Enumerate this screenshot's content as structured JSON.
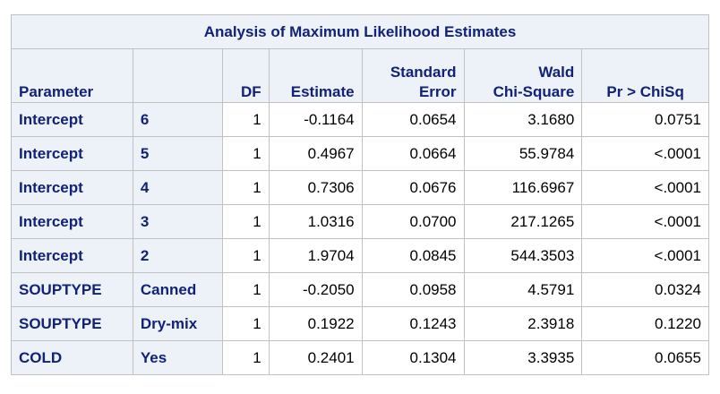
{
  "table": {
    "title": "Analysis of Maximum Likelihood Estimates",
    "headers": {
      "parameter": "Parameter",
      "level": "",
      "df": "DF",
      "estimate": "Estimate",
      "stderr_line1": "Standard",
      "stderr_line2": "Error",
      "wald_line1": "Wald",
      "wald_line2": "Chi-Square",
      "pvalue": "Pr > ChiSq"
    },
    "rows": [
      {
        "parameter": "Intercept",
        "level": "6",
        "df": "1",
        "estimate": "-0.1164",
        "stderr": "0.0654",
        "wald": "3.1680",
        "pvalue": "0.0751"
      },
      {
        "parameter": "Intercept",
        "level": "5",
        "df": "1",
        "estimate": "0.4967",
        "stderr": "0.0664",
        "wald": "55.9784",
        "pvalue": "<.0001"
      },
      {
        "parameter": "Intercept",
        "level": "4",
        "df": "1",
        "estimate": "0.7306",
        "stderr": "0.0676",
        "wald": "116.6967",
        "pvalue": "<.0001"
      },
      {
        "parameter": "Intercept",
        "level": "3",
        "df": "1",
        "estimate": "1.0316",
        "stderr": "0.0700",
        "wald": "217.1265",
        "pvalue": "<.0001"
      },
      {
        "parameter": "Intercept",
        "level": "2",
        "df": "1",
        "estimate": "1.9704",
        "stderr": "0.0845",
        "wald": "544.3503",
        "pvalue": "<.0001"
      },
      {
        "parameter": "SOUPTYPE",
        "level": "Canned",
        "df": "1",
        "estimate": "-0.2050",
        "stderr": "0.0958",
        "wald": "4.5791",
        "pvalue": "0.0324"
      },
      {
        "parameter": "SOUPTYPE",
        "level": "Dry-mix",
        "df": "1",
        "estimate": "0.1922",
        "stderr": "0.1243",
        "wald": "2.3918",
        "pvalue": "0.1220"
      },
      {
        "parameter": "COLD",
        "level": "Yes",
        "df": "1",
        "estimate": "0.2401",
        "stderr": "0.1304",
        "wald": "3.3935",
        "pvalue": "0.0655"
      }
    ]
  }
}
